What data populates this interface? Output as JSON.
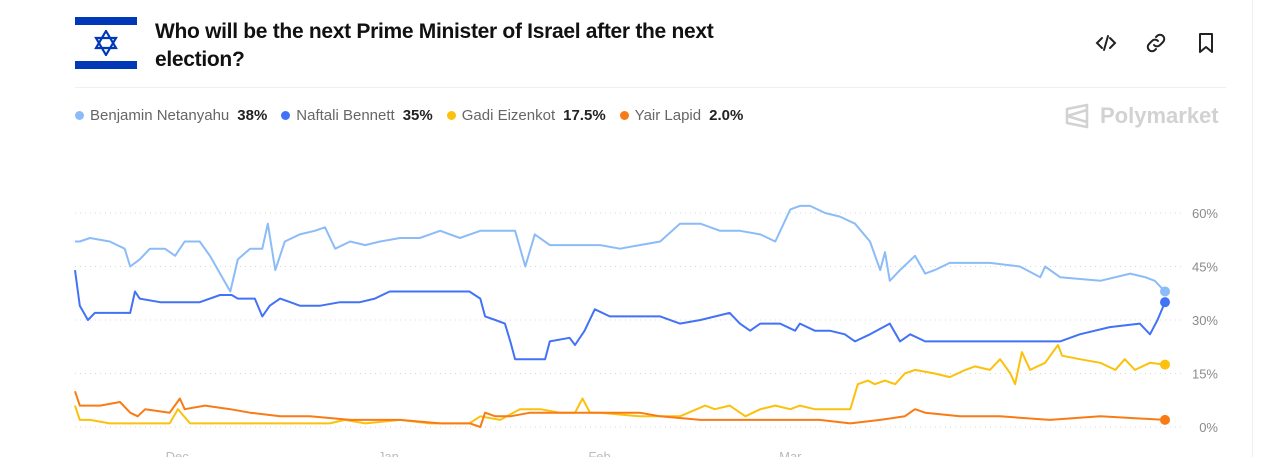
{
  "header": {
    "title": "Who will be the next Prime Minister of Israel after the next election?",
    "embed_icon": "code-icon",
    "link_icon": "link-icon",
    "bookmark_icon": "bookmark-icon"
  },
  "brand": {
    "name": "Polymarket"
  },
  "legend": [
    {
      "name": "Benjamin Netanyahu",
      "value": "38%",
      "color": "#8cbcf7"
    },
    {
      "name": "Naftali Bennett",
      "value": "35%",
      "color": "#4272f5"
    },
    {
      "name": "Gadi Eizenkot",
      "value": "17.5%",
      "color": "#fbc10c"
    },
    {
      "name": "Yair Lapid",
      "value": "2.0%",
      "color": "#f97b16"
    }
  ],
  "chart_data": {
    "type": "line",
    "title": "Who will be the next Prime Minister of Israel after the next election?",
    "xlabel": "",
    "ylabel": "",
    "xlim": [
      0,
      160
    ],
    "ylim": [
      0,
      60
    ],
    "x_ticks": [
      {
        "day": 15,
        "label": "Dec"
      },
      {
        "day": 46,
        "label": "Jan"
      },
      {
        "day": 77,
        "label": "Feb"
      },
      {
        "day": 105,
        "label": "Mar"
      }
    ],
    "y_ticks": [
      {
        "v": 0,
        "label": "0%"
      },
      {
        "v": 15,
        "label": "15%"
      },
      {
        "v": 30,
        "label": "30%"
      },
      {
        "v": 45,
        "label": "45%"
      },
      {
        "v": 60,
        "label": "60%"
      }
    ],
    "grid": "horizontal-dotted",
    "series": [
      {
        "name": "Benjamin Netanyahu",
        "color": "#8cbcf7",
        "points": [
          [
            0,
            52
          ],
          [
            0.7,
            52
          ],
          [
            2.2,
            53
          ],
          [
            5.1,
            52
          ],
          [
            7.3,
            50
          ],
          [
            8.1,
            45
          ],
          [
            9.5,
            47
          ],
          [
            11,
            50
          ],
          [
            13.2,
            50
          ],
          [
            14.7,
            48
          ],
          [
            16.1,
            52
          ],
          [
            18.3,
            52
          ],
          [
            19.8,
            48
          ],
          [
            21.3,
            43
          ],
          [
            22.8,
            38
          ],
          [
            23.9,
            47
          ],
          [
            25.7,
            50
          ],
          [
            27.5,
            50
          ],
          [
            28.3,
            57
          ],
          [
            29.4,
            44
          ],
          [
            30.8,
            52
          ],
          [
            33,
            54
          ],
          [
            35.2,
            55
          ],
          [
            36.7,
            56
          ],
          [
            38.2,
            50
          ],
          [
            40.4,
            52
          ],
          [
            42.6,
            51
          ],
          [
            44.8,
            52
          ],
          [
            47.7,
            53
          ],
          [
            50.6,
            53
          ],
          [
            53.6,
            55
          ],
          [
            56.5,
            53
          ],
          [
            59.5,
            55
          ],
          [
            62.4,
            55
          ],
          [
            64.6,
            55
          ],
          [
            66.1,
            45
          ],
          [
            67.5,
            54
          ],
          [
            69.7,
            51
          ],
          [
            71.9,
            51
          ],
          [
            74.1,
            51
          ],
          [
            77.1,
            51
          ],
          [
            80,
            50
          ],
          [
            82.9,
            51
          ],
          [
            85.9,
            52
          ],
          [
            88.8,
            57
          ],
          [
            91.8,
            57
          ],
          [
            94.7,
            55
          ],
          [
            97.6,
            55
          ],
          [
            100.6,
            54
          ],
          [
            102.8,
            52
          ],
          [
            105,
            61
          ],
          [
            106.4,
            62
          ],
          [
            107.9,
            62
          ],
          [
            110.1,
            60
          ],
          [
            112.3,
            59
          ],
          [
            114.5,
            57
          ],
          [
            116.7,
            52
          ],
          [
            118.2,
            44
          ],
          [
            118.9,
            49
          ],
          [
            119.6,
            41
          ],
          [
            121.1,
            44
          ],
          [
            123.3,
            48
          ],
          [
            124.8,
            43
          ],
          [
            126.2,
            44
          ],
          [
            128.4,
            46
          ],
          [
            130.7,
            46
          ],
          [
            134.3,
            46
          ],
          [
            138.7,
            45
          ],
          [
            141.7,
            42
          ],
          [
            142.4,
            45
          ],
          [
            144.6,
            42
          ],
          [
            150.5,
            41
          ],
          [
            154.9,
            43
          ],
          [
            157.1,
            42
          ],
          [
            158.5,
            41
          ],
          [
            160,
            38
          ]
        ]
      },
      {
        "name": "Naftali Bennett",
        "color": "#4272f5",
        "points": [
          [
            0,
            44
          ],
          [
            0.7,
            34
          ],
          [
            1.9,
            30
          ],
          [
            2.9,
            32
          ],
          [
            5.1,
            32
          ],
          [
            8.1,
            32
          ],
          [
            8.8,
            38
          ],
          [
            9.5,
            36
          ],
          [
            12.5,
            35
          ],
          [
            14.7,
            35
          ],
          [
            18.3,
            35
          ],
          [
            21.3,
            37
          ],
          [
            23,
            37
          ],
          [
            23.9,
            36
          ],
          [
            26.4,
            36
          ],
          [
            27.5,
            31
          ],
          [
            28.6,
            34
          ],
          [
            30.1,
            36
          ],
          [
            31.6,
            35
          ],
          [
            33,
            34
          ],
          [
            36,
            34
          ],
          [
            38.9,
            35
          ],
          [
            41.8,
            35
          ],
          [
            44,
            36
          ],
          [
            46.2,
            38
          ],
          [
            49.1,
            38
          ],
          [
            52,
            38
          ],
          [
            56.5,
            38
          ],
          [
            57.9,
            38
          ],
          [
            59.5,
            36
          ],
          [
            60.2,
            31
          ],
          [
            61.7,
            30
          ],
          [
            63.1,
            29
          ],
          [
            63.9,
            24
          ],
          [
            64.6,
            19
          ],
          [
            66.8,
            19
          ],
          [
            69,
            19
          ],
          [
            69.7,
            24
          ],
          [
            72.6,
            25
          ],
          [
            73.4,
            23
          ],
          [
            74.8,
            27
          ],
          [
            76.3,
            33
          ],
          [
            78.5,
            31
          ],
          [
            80.7,
            31
          ],
          [
            82.9,
            31
          ],
          [
            85.9,
            31
          ],
          [
            88.8,
            29
          ],
          [
            91.8,
            30
          ],
          [
            96.1,
            32
          ],
          [
            97.6,
            29
          ],
          [
            99.1,
            27
          ],
          [
            100.6,
            29
          ],
          [
            103.5,
            29
          ],
          [
            105.7,
            27
          ],
          [
            106.4,
            29
          ],
          [
            108.6,
            27
          ],
          [
            110.8,
            27
          ],
          [
            113,
            26
          ],
          [
            114.5,
            24
          ],
          [
            116.7,
            26
          ],
          [
            119.6,
            29
          ],
          [
            121.1,
            24
          ],
          [
            122.6,
            26
          ],
          [
            124.8,
            24
          ],
          [
            128.4,
            24
          ],
          [
            135.8,
            24
          ],
          [
            144.6,
            24
          ],
          [
            147.5,
            26
          ],
          [
            151.9,
            28
          ],
          [
            156.3,
            29
          ],
          [
            157.8,
            26
          ],
          [
            158.9,
            30
          ],
          [
            160,
            35
          ]
        ]
      },
      {
        "name": "Gadi Eizenkot",
        "color": "#fbc10c",
        "points": [
          [
            0,
            6
          ],
          [
            0.7,
            2
          ],
          [
            2.2,
            2
          ],
          [
            5.1,
            1
          ],
          [
            8.1,
            1
          ],
          [
            13.9,
            1
          ],
          [
            15.1,
            5
          ],
          [
            16.9,
            1
          ],
          [
            21.3,
            1
          ],
          [
            27.2,
            1
          ],
          [
            33,
            1
          ],
          [
            37.4,
            1
          ],
          [
            39.6,
            2
          ],
          [
            42.6,
            1
          ],
          [
            47.7,
            2
          ],
          [
            52.1,
            1
          ],
          [
            56.5,
            1
          ],
          [
            57.9,
            1
          ],
          [
            59.5,
            3
          ],
          [
            62.4,
            2
          ],
          [
            65.3,
            5
          ],
          [
            68.3,
            5
          ],
          [
            71.2,
            4
          ],
          [
            73.4,
            4
          ],
          [
            74.5,
            8
          ],
          [
            75.6,
            4
          ],
          [
            77.1,
            4
          ],
          [
            82.9,
            3
          ],
          [
            88.8,
            3
          ],
          [
            92.5,
            6
          ],
          [
            93.9,
            5
          ],
          [
            96.1,
            6
          ],
          [
            98.4,
            3
          ],
          [
            100.6,
            5
          ],
          [
            102.8,
            6
          ],
          [
            105,
            5
          ],
          [
            106.4,
            6
          ],
          [
            108.6,
            5
          ],
          [
            113.8,
            5
          ],
          [
            114.9,
            12
          ],
          [
            116.4,
            13
          ],
          [
            117.4,
            12
          ],
          [
            118.9,
            13
          ],
          [
            120.4,
            12
          ],
          [
            121.8,
            15
          ],
          [
            123.3,
            16
          ],
          [
            126.2,
            15
          ],
          [
            128.4,
            14
          ],
          [
            130.7,
            16
          ],
          [
            132.1,
            17
          ],
          [
            134.3,
            16
          ],
          [
            135.8,
            19
          ],
          [
            137.3,
            15
          ],
          [
            138,
            12
          ],
          [
            139,
            21
          ],
          [
            140.2,
            16
          ],
          [
            142.4,
            18
          ],
          [
            144.3,
            23
          ],
          [
            144.9,
            20
          ],
          [
            147.5,
            19
          ],
          [
            150.5,
            18
          ],
          [
            152.7,
            16
          ],
          [
            154.1,
            19
          ],
          [
            155.6,
            16
          ],
          [
            157.8,
            18
          ],
          [
            160,
            17.5
          ]
        ]
      },
      {
        "name": "Yair Lapid",
        "color": "#f97b16",
        "points": [
          [
            0,
            10
          ],
          [
            0.7,
            6
          ],
          [
            3.7,
            6
          ],
          [
            6.6,
            7
          ],
          [
            8.1,
            4
          ],
          [
            9.2,
            3
          ],
          [
            10.3,
            5
          ],
          [
            13.9,
            4
          ],
          [
            15.4,
            8
          ],
          [
            16.1,
            5
          ],
          [
            19.1,
            6
          ],
          [
            22.8,
            5
          ],
          [
            25.7,
            4
          ],
          [
            30.1,
            3
          ],
          [
            34.5,
            3
          ],
          [
            40.4,
            2
          ],
          [
            47.7,
            2
          ],
          [
            53.6,
            1
          ],
          [
            58,
            1
          ],
          [
            59.5,
            0
          ],
          [
            60.2,
            4
          ],
          [
            61.7,
            3
          ],
          [
            63.9,
            3
          ],
          [
            66.8,
            4
          ],
          [
            71.2,
            4
          ],
          [
            77.1,
            4
          ],
          [
            82.9,
            4
          ],
          [
            85.9,
            3
          ],
          [
            91.8,
            2
          ],
          [
            97.6,
            2
          ],
          [
            103.5,
            2
          ],
          [
            109.3,
            2
          ],
          [
            113.8,
            1
          ],
          [
            118.2,
            2
          ],
          [
            121.8,
            3
          ],
          [
            123.3,
            5
          ],
          [
            124.8,
            4
          ],
          [
            129.9,
            3
          ],
          [
            135.8,
            3
          ],
          [
            143.1,
            2
          ],
          [
            150.5,
            3
          ],
          [
            160,
            2
          ]
        ]
      }
    ]
  }
}
